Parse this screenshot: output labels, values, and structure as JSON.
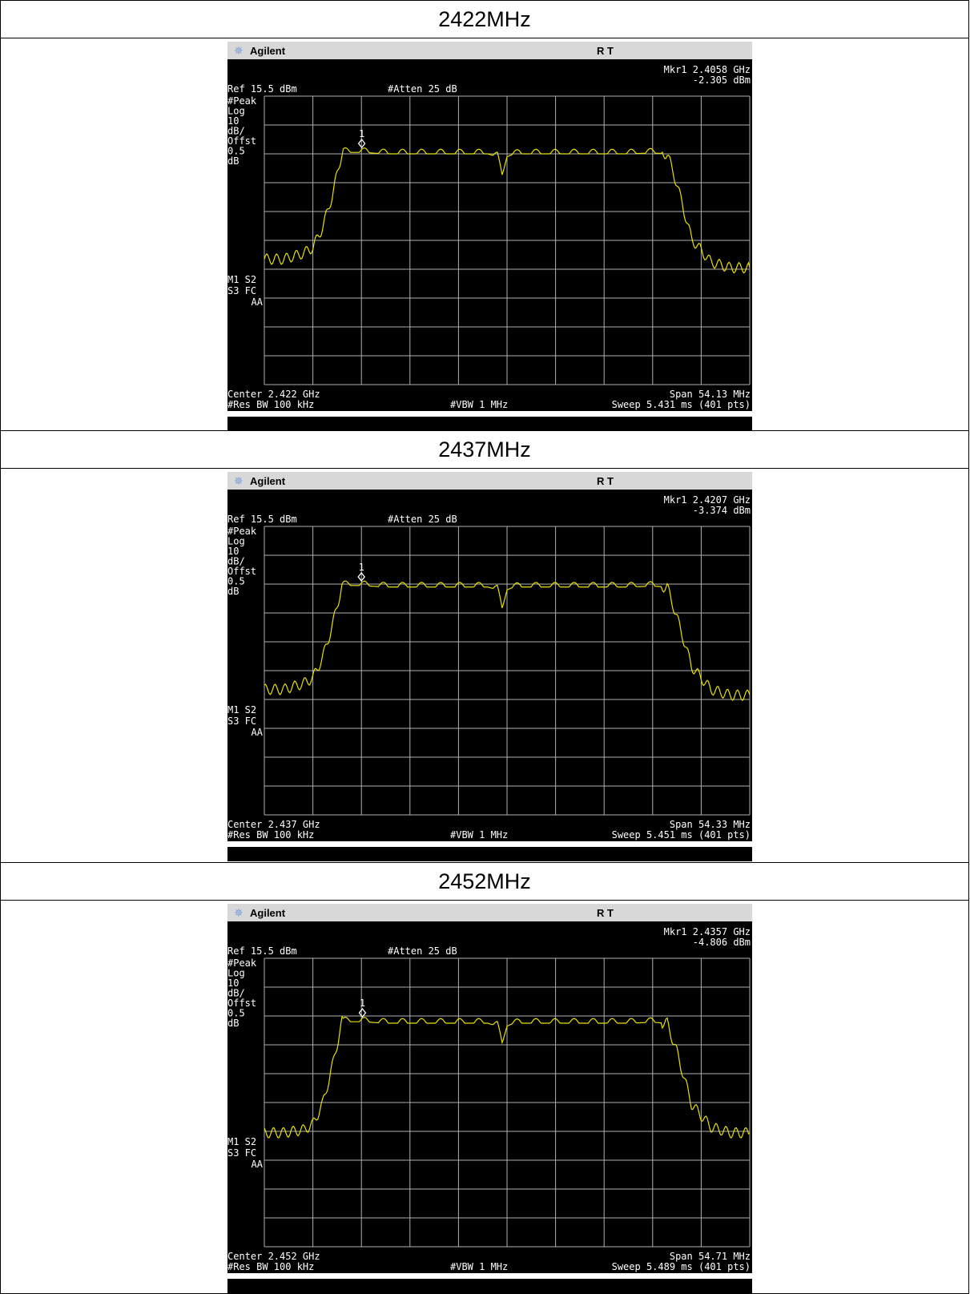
{
  "colors": {
    "trace": "#e8e000",
    "screen": "#000000",
    "grid": "#b0b0b0",
    "titlebar": "#d8d8d8",
    "logo_star": "#7aa0d8"
  },
  "icons": {
    "brand": "agilent-spark-icon"
  },
  "chart_data": [
    {
      "type": "line",
      "title": "2422MHz",
      "brand": "Agilent",
      "status": "R  T",
      "marker_line1": "Mkr1  2.4058 GHz",
      "marker_line2": "-2.305 dBm",
      "marker_label": "1",
      "ref_label": "Ref 15.5 dBm",
      "atten_label": "#Atten 25 dB",
      "side_labels": [
        "#Peak",
        "Log",
        "10",
        "dB/",
        "Offst",
        "0.5",
        "dB"
      ],
      "mode_labels": [
        "M1 S2",
        "S3 FC",
        "AA"
      ],
      "center_label": "Center 2.422 GHz",
      "span_label": "Span 54.13 MHz",
      "rbw_label": "#Res BW 100 kHz",
      "vbw_label": "#VBW 1 MHz",
      "sweep_label": "Sweep 5.431 ms (401 pts)",
      "center_ghz": 2.422,
      "span_mhz": 54.13,
      "ref_dbm": 15.5,
      "db_per_div": 10,
      "marker": {
        "freq_ghz": 2.4058,
        "level_dbm": -2.305
      },
      "grid": true,
      "x": [
        0.0,
        0.04,
        0.08,
        0.1,
        0.12,
        0.14,
        0.16,
        0.2,
        0.25,
        0.3,
        0.35,
        0.4,
        0.46,
        0.48,
        0.49,
        0.5,
        0.51,
        0.53,
        0.58,
        0.63,
        0.68,
        0.75,
        0.8,
        0.83,
        0.85,
        0.88,
        0.92,
        0.96,
        1.0
      ],
      "y": [
        -41,
        -41,
        -39,
        -37,
        -30,
        -19,
        -4,
        -4,
        -4.5,
        -4.5,
        -4.5,
        -4.5,
        -4.5,
        -5.5,
        -12,
        -5.5,
        -4.8,
        -4.5,
        -4.5,
        -4.5,
        -4.5,
        -4.5,
        -4.2,
        -4.5,
        -15,
        -34,
        -42,
        -44,
        -44
      ]
    },
    {
      "type": "line",
      "title": "2437MHz",
      "brand": "Agilent",
      "status": "R  T",
      "marker_line1": "Mkr1  2.4207 GHz",
      "marker_line2": "-3.374 dBm",
      "marker_label": "1",
      "ref_label": "Ref 15.5 dBm",
      "atten_label": "#Atten 25 dB",
      "side_labels": [
        "#Peak",
        "Log",
        "10",
        "dB/",
        "Offst",
        "0.5",
        "dB"
      ],
      "mode_labels": [
        "M1 S2",
        "S3 FC",
        "AA"
      ],
      "center_label": "Center 2.437 GHz",
      "span_label": "Span 54.33 MHz",
      "rbw_label": "#Res BW 100 kHz",
      "vbw_label": "#VBW 1 MHz",
      "sweep_label": "Sweep 5.451 ms (401 pts)",
      "center_ghz": 2.437,
      "span_mhz": 54.33,
      "ref_dbm": 15.5,
      "db_per_div": 10,
      "marker": {
        "freq_ghz": 2.4207,
        "level_dbm": -3.374
      },
      "grid": true,
      "x": [
        0.0,
        0.04,
        0.08,
        0.1,
        0.12,
        0.14,
        0.16,
        0.2,
        0.25,
        0.3,
        0.35,
        0.4,
        0.46,
        0.48,
        0.49,
        0.5,
        0.51,
        0.53,
        0.58,
        0.63,
        0.68,
        0.75,
        0.8,
        0.83,
        0.85,
        0.88,
        0.92,
        0.96,
        1.0
      ],
      "y": [
        -41,
        -41,
        -39,
        -37,
        -30,
        -19,
        -5,
        -5,
        -5.5,
        -5.5,
        -5.5,
        -5.5,
        -5.5,
        -6.5,
        -13,
        -6.5,
        -5.8,
        -5.5,
        -5.5,
        -5.5,
        -5.5,
        -5.5,
        -5.2,
        -5.5,
        -16,
        -33,
        -41,
        -43,
        -43
      ]
    },
    {
      "type": "line",
      "title": "2452MHz",
      "brand": "Agilent",
      "status": "R  T",
      "marker_line1": "Mkr1  2.4357 GHz",
      "marker_line2": "-4.806 dBm",
      "marker_label": "1",
      "ref_label": "Ref 15.5 dBm",
      "atten_label": "#Atten 25 dB",
      "side_labels": [
        "#Peak",
        "Log",
        "10",
        "dB/",
        "Offst",
        "0.5",
        "dB"
      ],
      "mode_labels": [
        "M1 S2",
        "S3 FC",
        "AA"
      ],
      "center_label": "Center 2.452 GHz",
      "span_label": "Span 54.71 MHz",
      "rbw_label": "#Res BW 100 kHz",
      "vbw_label": "#VBW 1 MHz",
      "sweep_label": "Sweep 5.489 ms (401 pts)",
      "center_ghz": 2.452,
      "span_mhz": 54.71,
      "ref_dbm": 15.5,
      "db_per_div": 10,
      "marker": {
        "freq_ghz": 2.4357,
        "level_dbm": -4.806
      },
      "grid": true,
      "x": [
        0.0,
        0.04,
        0.08,
        0.1,
        0.12,
        0.14,
        0.16,
        0.2,
        0.25,
        0.3,
        0.35,
        0.4,
        0.46,
        0.48,
        0.49,
        0.5,
        0.51,
        0.53,
        0.58,
        0.63,
        0.68,
        0.75,
        0.8,
        0.83,
        0.85,
        0.88,
        0.92,
        0.96,
        1.0
      ],
      "y": [
        -45,
        -45,
        -44,
        -42,
        -35,
        -22,
        -6.5,
        -6.5,
        -7,
        -7,
        -7,
        -7,
        -7,
        -8,
        -14,
        -8,
        -7.3,
        -7,
        -7,
        -7,
        -7,
        -7,
        -6.7,
        -7,
        -17,
        -35,
        -43,
        -45,
        -45
      ]
    }
  ]
}
